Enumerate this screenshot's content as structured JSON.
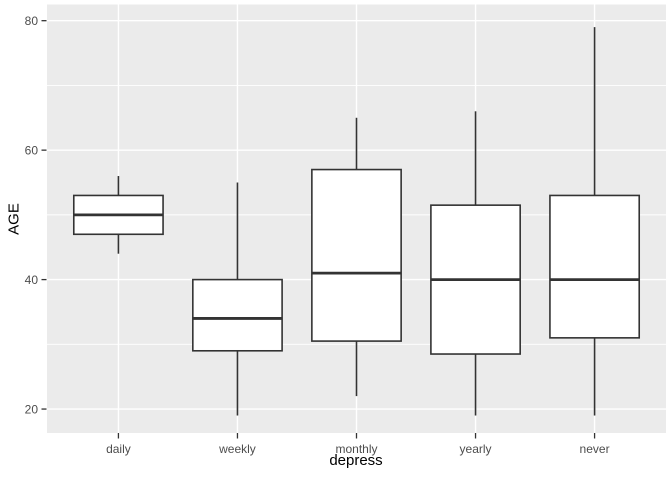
{
  "figure": {
    "background": "#FFFFFF",
    "panel_bg": "#EBEBEB",
    "grid_color": "#FFFFFF",
    "box_fill": "#FFFFFF",
    "box_stroke": "#333333",
    "tick_color": "#333333",
    "tick_label_color": "#4D4D4D",
    "axis_title_color": "#000000"
  },
  "chart_data": {
    "type": "boxplot",
    "title": "",
    "xlabel": "depress",
    "ylabel": "AGE",
    "categories": [
      "daily",
      "weekly",
      "monthly",
      "yearly",
      "never"
    ],
    "series": [
      {
        "category": "daily",
        "min": 44,
        "q1": 47,
        "median": 50,
        "q3": 53,
        "max": 56
      },
      {
        "category": "weekly",
        "min": 19,
        "q1": 29,
        "median": 34,
        "q3": 40,
        "max": 55
      },
      {
        "category": "monthly",
        "min": 22,
        "q1": 30.5,
        "median": 41,
        "q3": 57,
        "max": 65
      },
      {
        "category": "yearly",
        "min": 19,
        "q1": 28.5,
        "median": 40,
        "q3": 51.5,
        "max": 66
      },
      {
        "category": "never",
        "min": 19,
        "q1": 31,
        "median": 40,
        "q3": 53,
        "max": 79
      }
    ],
    "y_ticks": [
      20,
      40,
      60,
      80
    ],
    "y_minor_ticks": [
      30,
      50,
      70
    ],
    "ylim": [
      16.3,
      82.5
    ],
    "grid": true,
    "legend": false
  }
}
